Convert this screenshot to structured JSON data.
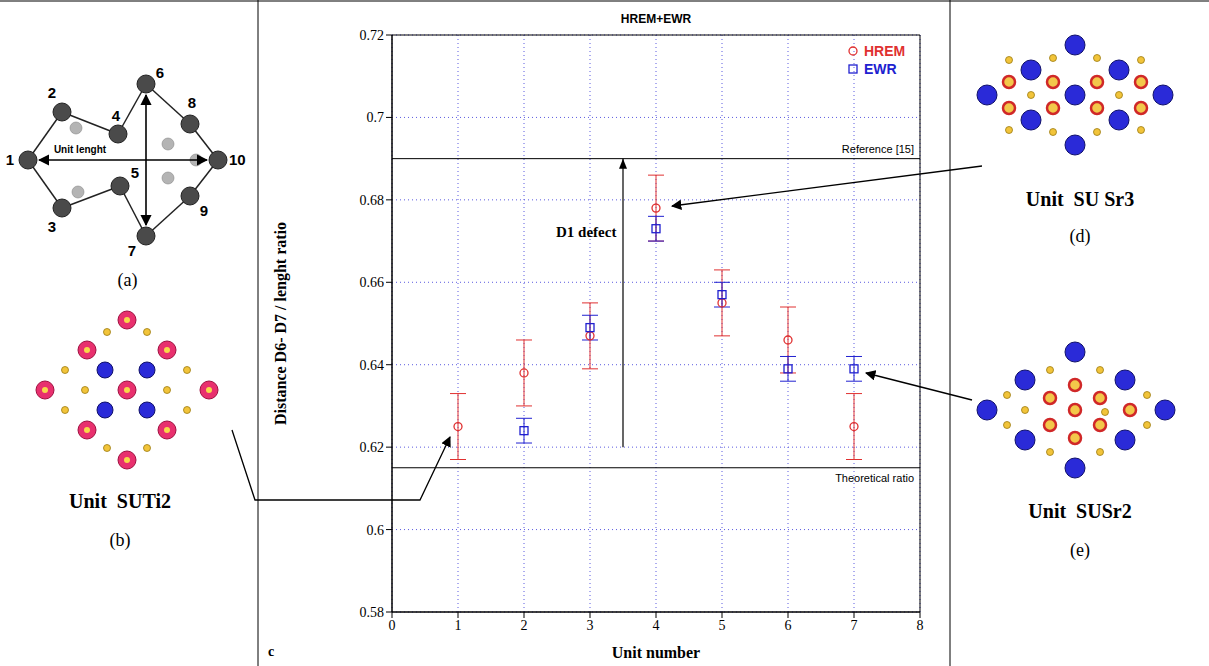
{
  "panels": {
    "a": {
      "letter": "(a)",
      "nodes": [
        1,
        2,
        3,
        4,
        5,
        6,
        7,
        8,
        9,
        10
      ],
      "unit_length_label": "Unit lenght"
    },
    "b": {
      "letter": "(b)",
      "title": "Unit  SUTi2"
    },
    "c": {
      "letter": "c"
    },
    "d": {
      "letter": "(d)",
      "title": "Unit  SU Sr3"
    },
    "e": {
      "letter": "(e)",
      "title": "Unit  SUSr2"
    }
  },
  "chart_data": {
    "type": "scatter",
    "title": "HREM+EWR",
    "x_label": "Unit number",
    "y_label": "Distance D6- D7 / lenght ratio",
    "xlim": [
      0,
      8
    ],
    "xticks": [
      0,
      1,
      2,
      3,
      4,
      5,
      6,
      7,
      8
    ],
    "ylim": [
      0.58,
      0.72
    ],
    "yticks": [
      0.58,
      0.6,
      0.62,
      0.64,
      0.66,
      0.68,
      0.7,
      0.72
    ],
    "grid": true,
    "legend": "top-right",
    "series": [
      {
        "name": "HREM",
        "color": "#e03030",
        "marker": "circle",
        "x": [
          1,
          2,
          3,
          4,
          5,
          6,
          7
        ],
        "values": [
          0.625,
          0.638,
          0.647,
          0.678,
          0.655,
          0.646,
          0.625
        ],
        "errors": [
          0.008,
          0.008,
          0.008,
          0.008,
          0.008,
          0.008,
          0.008
        ]
      },
      {
        "name": "EWR",
        "color": "#2020d0",
        "marker": "square",
        "x": [
          2,
          3,
          4,
          5,
          6,
          7
        ],
        "values": [
          0.624,
          0.649,
          0.673,
          0.657,
          0.639,
          0.639
        ],
        "errors": [
          0.003,
          0.003,
          0.003,
          0.003,
          0.003,
          0.003
        ]
      }
    ],
    "reference_lines": [
      {
        "value": 0.69,
        "label": "Reference [15]"
      },
      {
        "value": 0.615,
        "label": "Theoretical ratio"
      }
    ],
    "annotations": [
      {
        "text": "D1 defect",
        "x": 3.4,
        "y": 0.671,
        "arrow_x": 3.5,
        "arrow_from": 0.62,
        "arrow_to": 0.69
      }
    ]
  }
}
